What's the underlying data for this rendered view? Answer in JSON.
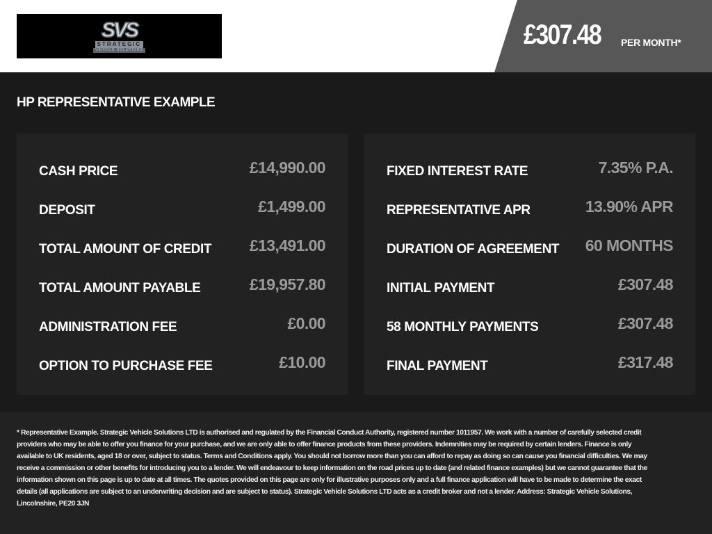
{
  "header": {
    "logo_text": "STRATEGIC",
    "logo_sub": "VEHICLE SOLUTIONS",
    "logo_mark": "SVS",
    "price": "£307.48",
    "per_month": "PER MONTH*"
  },
  "title": "HP REPRESENTATIVE EXAMPLE",
  "left_panel": [
    {
      "label": "CASH PRICE",
      "value": "£14,990.00"
    },
    {
      "label": "DEPOSIT",
      "value": "£1,499.00"
    },
    {
      "label": "TOTAL AMOUNT OF CREDIT",
      "value": "£13,491.00"
    },
    {
      "label": "TOTAL AMOUNT PAYABLE",
      "value": "£19,957.80"
    },
    {
      "label": "ADMINISTRATION FEE",
      "value": "£0.00"
    },
    {
      "label": "OPTION TO PURCHASE FEE",
      "value": "£10.00"
    }
  ],
  "right_panel": [
    {
      "label": "FIXED INTEREST RATE",
      "value": "7.35% P.A."
    },
    {
      "label": "REPRESENTATIVE APR",
      "value": "13.90% APR"
    },
    {
      "label": "DURATION OF AGREEMENT",
      "value": "60 MONTHS"
    },
    {
      "label": "INITIAL PAYMENT",
      "value": "£307.48"
    },
    {
      "label": "58 MONTHLY PAYMENTS",
      "value": "£307.48"
    },
    {
      "label": "FINAL PAYMENT",
      "value": "£317.48"
    }
  ],
  "footer": "* Representative Example. Strategic Vehicle Solutions LTD is authorised and regulated by the Financial Conduct Authority, registered number 1011957. We work with a number of carefully selected credit providers who may be able to offer you finance for your purchase, and we are only able to offer finance products from these providers. Indemnities may be required by certain lenders. Finance is only available to UK residents, aged 18 or over, subject to status. Terms and Conditions apply. You should not borrow more than you can afford to repay as doing so can cause you financial difficulties. We may receive a commission or other benefits for introducing you to a lender. We will endeavour to keep information on the road prices up to date (and related finance examples) but we cannot guarantee that the information shown on this page is up to date at all times. The quotes provided on this page are only for illustrative purposes only and a full finance application will have to be made to determine the exact details (all applications are subject to an underwriting decision and are subject to status). Strategic Vehicle Solutions LTD acts as a credit broker and not a lender. Address: Strategic Vehicle Solutions, Lincolnshire, PE20 3JN"
}
